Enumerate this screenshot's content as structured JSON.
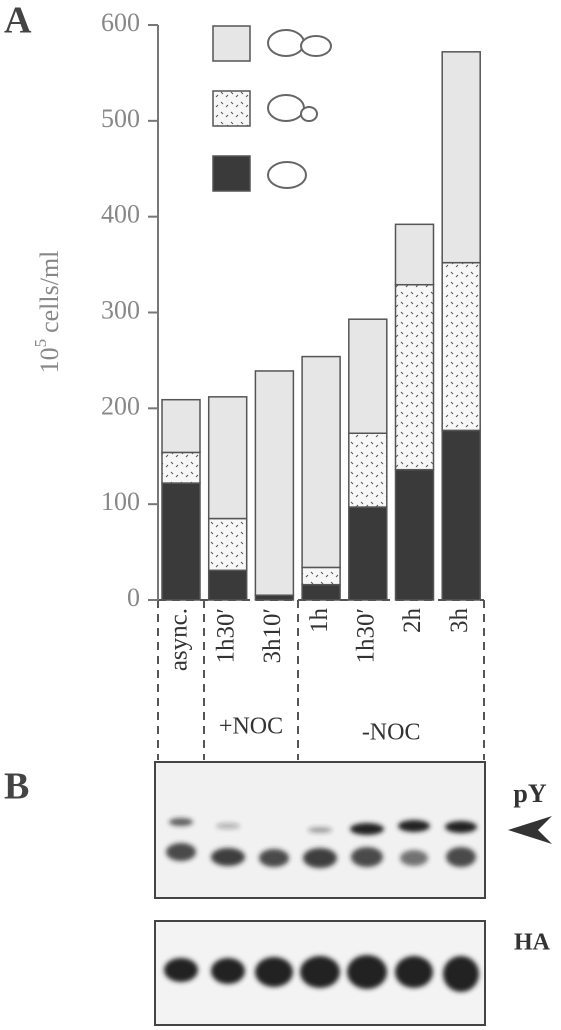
{
  "chart_data": {
    "type": "stacked-bar",
    "panel_a_label": "A",
    "panel_b_label": "B",
    "ylabel_base": "10",
    "ylabel_exponent": "5",
    "ylabel_unit": "cells/ml",
    "categories": [
      "async.",
      "1h30′",
      "3h10′",
      "1h",
      "1h30′",
      "2h",
      "3h"
    ],
    "groups": [
      {
        "label": "+NOC",
        "from": 1,
        "to": 2
      },
      {
        "label": "-NOC",
        "from": 3,
        "to": 6
      }
    ],
    "series": [
      {
        "color": "#3a3a3a",
        "values": [
          122,
          31,
          5,
          16,
          97,
          136,
          177
        ]
      },
      {
        "color": "#f7f7f7",
        "hatch": true,
        "values": [
          32,
          54,
          0,
          18,
          77,
          193,
          175
        ]
      },
      {
        "color": "#e6e6e6",
        "values": [
          55,
          127,
          234,
          220,
          119,
          63,
          220
        ]
      }
    ],
    "ylim": [
      0,
      600
    ],
    "yticks": [
      0,
      100,
      200,
      300,
      400,
      500,
      600
    ],
    "blot_labels": [
      "pY",
      "HA"
    ]
  }
}
